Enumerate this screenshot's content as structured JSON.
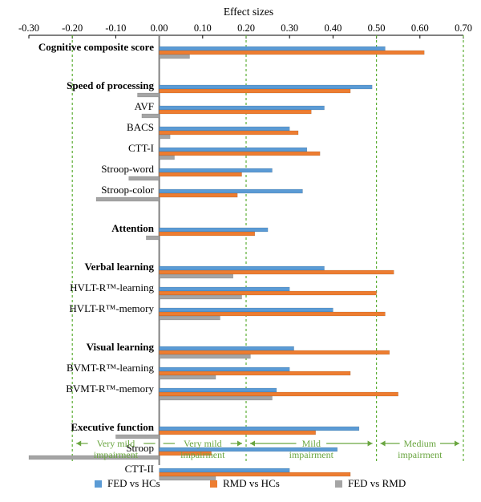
{
  "chart_data": {
    "type": "bar",
    "orientation": "horizontal",
    "title": "Effect sizes",
    "xlim": [
      -0.3,
      0.7
    ],
    "x_ticks": [
      "-0.30",
      "-0.20",
      "-0.10",
      "0.00",
      "0.10",
      "0.20",
      "0.30",
      "0.40",
      "0.50",
      "0.60",
      "0.70"
    ],
    "x_tick_values": [
      -0.3,
      -0.2,
      -0.1,
      0.0,
      0.1,
      0.2,
      0.3,
      0.4,
      0.5,
      0.6,
      0.7
    ],
    "threshold_lines": [
      -0.2,
      0.2,
      0.5,
      0.7
    ],
    "series": [
      {
        "name": "FED vs HCs",
        "color": "#5b9bd5"
      },
      {
        "name": "RMD vs HCs",
        "color": "#ed7d31"
      },
      {
        "name": "FED vs RMD",
        "color": "#a5a5a5"
      }
    ],
    "categories": [
      {
        "label": "Cognitive composite score",
        "bold": true,
        "values": [
          0.52,
          0.61,
          0.07
        ]
      },
      {
        "label": "Speed of processing",
        "bold": true,
        "values": [
          0.49,
          0.44,
          -0.05
        ]
      },
      {
        "label": "AVF",
        "bold": false,
        "values": [
          0.38,
          0.35,
          -0.04
        ]
      },
      {
        "label": "BACS",
        "bold": false,
        "values": [
          0.3,
          0.32,
          0.025
        ]
      },
      {
        "label": "CTT-I",
        "bold": false,
        "values": [
          0.34,
          0.37,
          0.035
        ]
      },
      {
        "label": "Stroop-word",
        "bold": false,
        "values": [
          0.26,
          0.19,
          -0.07
        ]
      },
      {
        "label": "Stroop-color",
        "bold": false,
        "values": [
          0.33,
          0.18,
          -0.145
        ]
      },
      {
        "label": "Attention",
        "bold": true,
        "values": [
          0.25,
          0.22,
          -0.03
        ]
      },
      {
        "label": "Verbal learning",
        "bold": true,
        "values": [
          0.38,
          0.54,
          0.17
        ]
      },
      {
        "label": "HVLT-R™-learning",
        "bold": false,
        "values": [
          0.3,
          0.5,
          0.19
        ]
      },
      {
        "label": "HVLT-R™-memory",
        "bold": false,
        "values": [
          0.4,
          0.52,
          0.14
        ]
      },
      {
        "label": "Visual learning",
        "bold": true,
        "values": [
          0.31,
          0.53,
          0.21
        ]
      },
      {
        "label": "BVMT-R™-learning",
        "bold": false,
        "values": [
          0.3,
          0.44,
          0.13
        ]
      },
      {
        "label": "BVMT-R™-memory",
        "bold": false,
        "values": [
          0.27,
          0.55,
          0.26
        ]
      },
      {
        "label": "Executive function",
        "bold": true,
        "values": [
          0.46,
          0.36,
          -0.1
        ]
      },
      {
        "label": "Stroop",
        "bold": false,
        "values": [
          0.41,
          0.12,
          -0.3
        ]
      },
      {
        "label": "CTT-II",
        "bold": false,
        "values": [
          0.3,
          0.44,
          0.13
        ]
      }
    ],
    "zones": [
      {
        "label": "Very mild impairment",
        "from": -0.2,
        "to": 0.0,
        "arrow_left": true,
        "arrow_right": false
      },
      {
        "label": "Very mild impairment",
        "from": 0.0,
        "to": 0.2,
        "arrow_left": false,
        "arrow_right": true
      },
      {
        "label": "Mild impairment",
        "from": 0.2,
        "to": 0.5,
        "arrow_left": true,
        "arrow_right": true
      },
      {
        "label": "Medium impairment",
        "from": 0.5,
        "to": 0.7,
        "arrow_left": true,
        "arrow_right": true
      }
    ],
    "legend_position": "bottom"
  }
}
